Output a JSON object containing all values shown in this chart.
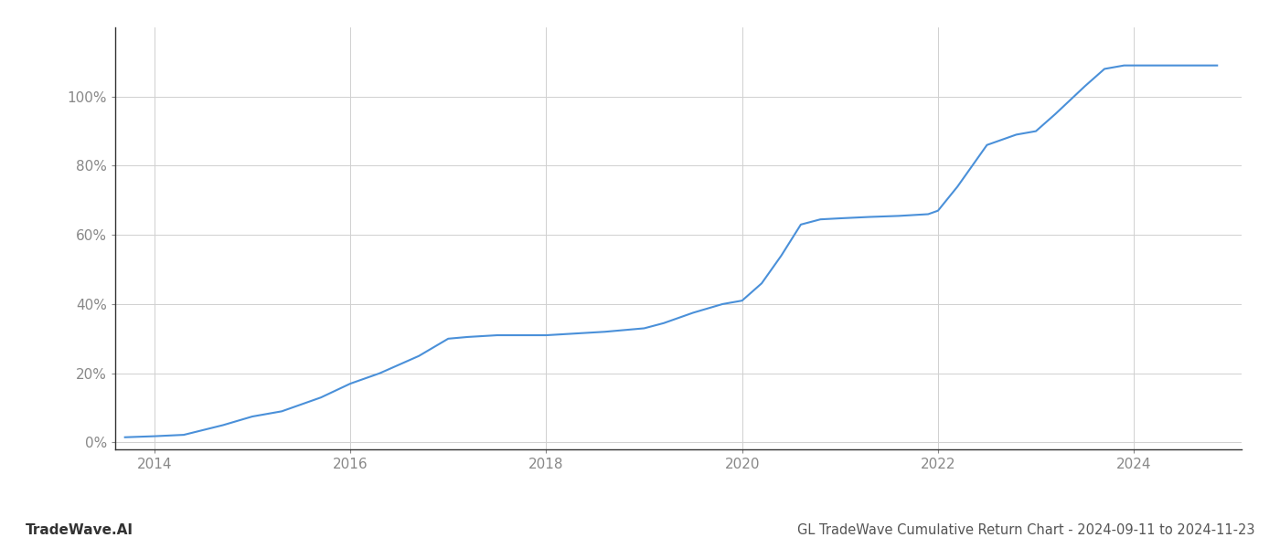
{
  "x_years": [
    2013.7,
    2014.0,
    2014.3,
    2014.7,
    2015.0,
    2015.3,
    2015.7,
    2016.0,
    2016.3,
    2016.7,
    2017.0,
    2017.2,
    2017.5,
    2017.8,
    2018.0,
    2018.3,
    2018.6,
    2018.8,
    2019.0,
    2019.2,
    2019.5,
    2019.8,
    2020.0,
    2020.2,
    2020.4,
    2020.6,
    2020.8,
    2021.0,
    2021.3,
    2021.6,
    2021.9,
    2022.0,
    2022.2,
    2022.5,
    2022.8,
    2023.0,
    2023.2,
    2023.5,
    2023.7,
    2023.9,
    2024.0,
    2024.3,
    2024.6,
    2024.85
  ],
  "y_values": [
    0.015,
    0.018,
    0.022,
    0.05,
    0.075,
    0.09,
    0.13,
    0.17,
    0.2,
    0.25,
    0.3,
    0.305,
    0.31,
    0.31,
    0.31,
    0.315,
    0.32,
    0.325,
    0.33,
    0.345,
    0.375,
    0.4,
    0.41,
    0.46,
    0.54,
    0.63,
    0.645,
    0.648,
    0.652,
    0.655,
    0.66,
    0.67,
    0.74,
    0.86,
    0.89,
    0.9,
    0.95,
    1.03,
    1.08,
    1.09,
    1.09,
    1.09,
    1.09,
    1.09
  ],
  "line_color": "#4a90d9",
  "line_width": 1.5,
  "background_color": "#ffffff",
  "grid_color": "#d0d0d0",
  "title": "GL TradeWave Cumulative Return Chart - 2024-09-11 to 2024-11-23",
  "watermark": "TradeWave.AI",
  "xlim": [
    2013.6,
    2025.1
  ],
  "ylim": [
    -0.02,
    1.2
  ],
  "xticks": [
    2014,
    2016,
    2018,
    2020,
    2022,
    2024
  ],
  "yticks": [
    0.0,
    0.2,
    0.4,
    0.6,
    0.8,
    1.0
  ],
  "title_fontsize": 10.5,
  "watermark_fontsize": 11,
  "tick_fontsize": 11,
  "tick_color": "#888888"
}
